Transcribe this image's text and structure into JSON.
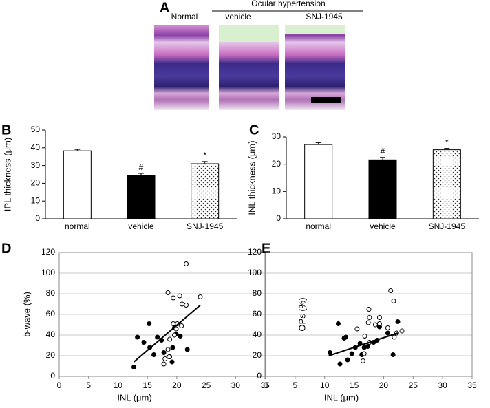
{
  "panel_a": {
    "letter": "A",
    "header": "Ocular hypertension",
    "labels": [
      "Normal",
      "vehicle",
      "SNJ-1945"
    ]
  },
  "chart_data": [
    {
      "type": "bar",
      "panel": "B",
      "ylabel": "IPL thickness (μm)",
      "categories": [
        "normal",
        "vehicle",
        "SNJ-1945"
      ],
      "values": [
        38.3,
        24.6,
        31.0
      ],
      "errors": [
        0.8,
        1.0,
        1.2
      ],
      "fills": [
        "white",
        "black",
        "dots"
      ],
      "ylim": [
        0,
        50
      ],
      "yticks": [
        0,
        10,
        20,
        30,
        40,
        50
      ],
      "annotations": [
        {
          "text": "#",
          "category": "vehicle"
        },
        {
          "text": "*",
          "category": "SNJ-1945"
        }
      ]
    },
    {
      "type": "bar",
      "panel": "C",
      "ylabel": "INL thickness (μm)",
      "categories": [
        "normal",
        "vehicle",
        "SNJ-1945"
      ],
      "values": [
        27.2,
        21.6,
        25.3
      ],
      "errors": [
        0.7,
        0.9,
        0.5
      ],
      "fills": [
        "white",
        "black",
        "dots"
      ],
      "ylim": [
        0,
        30
      ],
      "yticks": [
        0,
        10,
        20,
        30
      ],
      "annotations": [
        {
          "text": "#",
          "category": "vehicle"
        },
        {
          "text": "*",
          "category": "SNJ-1945"
        }
      ]
    },
    {
      "type": "scatter",
      "panel": "D",
      "xlabel": "INL (μm)",
      "ylabel": "b-wave (%)",
      "xlim": [
        0,
        35
      ],
      "xticks": [
        0,
        5,
        10,
        15,
        20,
        25,
        30,
        35
      ],
      "ylim": [
        0,
        120
      ],
      "yticks": [
        0,
        20,
        40,
        60,
        80,
        100,
        120
      ],
      "grid": true,
      "series": [
        {
          "color": "#000000",
          "filled": true,
          "x": [
            12.7,
            13.3,
            14.4,
            15.3,
            15.4,
            16.1,
            16.7,
            17.4,
            17.8,
            18.8,
            19.2,
            19.3,
            19.6,
            19.9,
            20.6,
            21.8
          ],
          "y": [
            9,
            38,
            33,
            51,
            28,
            21,
            38,
            35,
            23,
            19,
            14,
            28,
            47,
            41,
            39,
            26
          ]
        },
        {
          "color": "#000000",
          "filled": false,
          "x": [
            18.5,
            19.4,
            20.5,
            20.9,
            21.6,
            21.6,
            24.0,
            19.4,
            20.1,
            19.9,
            20.8,
            19.6,
            18.8,
            18.5,
            18.7,
            18.0,
            17.8
          ],
          "y": [
            81,
            76,
            78,
            70,
            69,
            109,
            77,
            51,
            51,
            46,
            49,
            40,
            36,
            26,
            19,
            17,
            12
          ]
        }
      ],
      "trendline": {
        "x": [
          12.7,
          24.0
        ],
        "y": [
          14,
          69
        ]
      }
    },
    {
      "type": "scatter",
      "panel": "E",
      "xlabel": "INL (μm)",
      "ylabel": "OPs (%)",
      "xlim": [
        0,
        35
      ],
      "xticks": [
        0,
        5,
        10,
        15,
        20,
        25,
        30,
        35
      ],
      "ylim": [
        0,
        120
      ],
      "yticks": [
        0,
        20,
        40,
        60,
        80,
        100,
        120
      ],
      "grid": true,
      "series": [
        {
          "color": "#000000",
          "filled": true,
          "x": [
            10.9,
            12.3,
            12.6,
            13.3,
            13.6,
            13.9,
            14.6,
            15.2,
            16.0,
            16.3,
            16.7,
            17.3,
            18.3,
            18.9,
            19.3,
            20.7,
            21.6,
            22.4
          ],
          "y": [
            23,
            51,
            12,
            37,
            38,
            16,
            22,
            28,
            32,
            21,
            28,
            29,
            33,
            35,
            48,
            42,
            21,
            53
          ]
        },
        {
          "color": "#000000",
          "filled": false,
          "x": [
            21.2,
            21.7,
            17.5,
            17.6,
            17.4,
            18.6,
            15.5,
            16.8,
            17.6,
            16.5,
            16.7,
            19.3,
            21.8,
            23.1,
            22.2,
            20.7,
            19.3
          ],
          "y": [
            83,
            73,
            65,
            57,
            52,
            50,
            46,
            39,
            33,
            15,
            22,
            51,
            38,
            44,
            42,
            47,
            57
          ]
        }
      ],
      "trendline": {
        "x": [
          10.7,
          22.4
        ],
        "y": [
          20,
          42
        ]
      }
    }
  ]
}
